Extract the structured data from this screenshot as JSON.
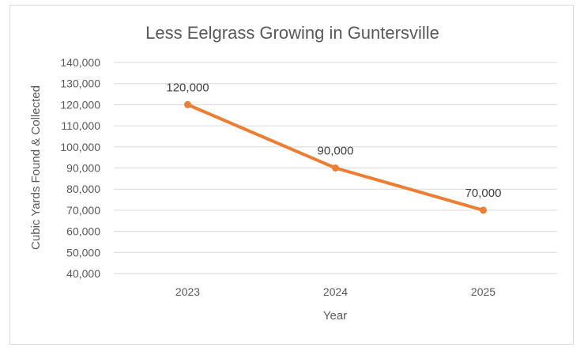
{
  "chart_data": {
    "type": "line",
    "title": "Less Eelgrass Growing in Guntersville",
    "xlabel": "Year",
    "ylabel": "Cubic Yards Found & Collected",
    "categories": [
      "2023",
      "2024",
      "2025"
    ],
    "series": [
      {
        "values": [
          120000,
          90000,
          70000
        ],
        "labels": [
          "120,000",
          "90,000",
          "70,000"
        ],
        "color": "#ed7d31"
      }
    ],
    "ylim": [
      40000,
      140000
    ],
    "yticks": [
      140000,
      130000,
      120000,
      110000,
      100000,
      90000,
      80000,
      70000,
      60000,
      50000,
      40000
    ],
    "ytick_labels": [
      "140,000",
      "130,000",
      "120,000",
      "110,000",
      "100,000",
      "90,000",
      "80,000",
      "70,000",
      "60,000",
      "50,000",
      "40,000"
    ],
    "grid": true,
    "legend": "none"
  }
}
